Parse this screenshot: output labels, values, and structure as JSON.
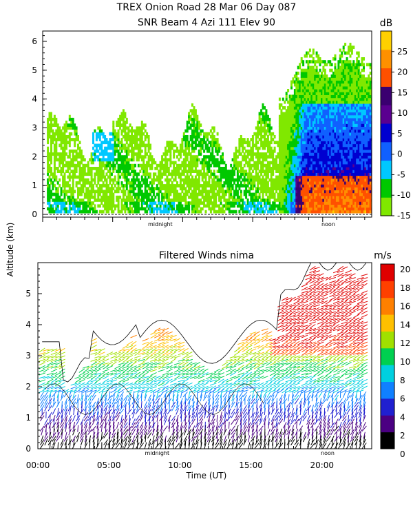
{
  "title": "TREX Onion Road  28 Mar 06 Day 087",
  "subtitle": "SNR Beam 4 Azi 111 Elev 90",
  "ylabel": "Altitude (km)",
  "xlabel": "Time (UT)",
  "chart_data": [
    {
      "type": "heatmap",
      "title": "SNR Beam 4 Azi 111 Elev 90",
      "ylim": [
        0,
        6.4
      ],
      "xlim": [
        0,
        23.5
      ],
      "yticks": [
        "0",
        "1",
        "2",
        "3",
        "4",
        "5",
        "6"
      ],
      "markers": [
        {
          "label": "midnight",
          "x": 8.4
        },
        {
          "label": "noon",
          "x": 20.4
        }
      ],
      "colorbar": {
        "unit": "dB",
        "ticks": [
          "25",
          "20",
          "15",
          "10",
          "5",
          "0",
          "-5",
          "-10",
          "-15"
        ],
        "min": -15,
        "max": 30,
        "colors": [
          "#80e800",
          "#00c800",
          "#00c8ff",
          "#1060ff",
          "#0000d0",
          "#5a0090",
          "#3a0070",
          "#ff5000",
          "#ff9000",
          "#ffd000"
        ]
      },
      "observations": "Weak SNR (-15 to -5 dB) up to ~3.5 km before 17 UT; strong SNR (0 to 25 dB) from ~17 UT with signal up to ~6 km."
    },
    {
      "type": "scatter",
      "title": "Filtered Winds nima",
      "ylim": [
        0,
        6
      ],
      "xlim": [
        0,
        23.5
      ],
      "yticks": [
        "0",
        "1",
        "2",
        "3",
        "4",
        "5"
      ],
      "xticks": [
        "00:00",
        "05:00",
        "10:00",
        "15:00",
        "20:00"
      ],
      "markers": [
        {
          "label": "midnight",
          "x": 8.4
        },
        {
          "label": "noon",
          "x": 20.4
        }
      ],
      "colorbar": {
        "unit": "m/s",
        "ticks": [
          "20",
          "18",
          "16",
          "14",
          "12",
          "10",
          "8",
          "6",
          "4",
          "2",
          "0"
        ],
        "colors": [
          "#000000",
          "#4b0082",
          "#2020d0",
          "#1080ff",
          "#00d0e0",
          "#00d050",
          "#a0e000",
          "#ffc000",
          "#ff8000",
          "#ff4000",
          "#e00000"
        ]
      },
      "observations": "Wind speed increases with altitude: under 6 m/s below ~2 km, 8-14 m/s near 2.5-3 km, above 18 m/s over ~3.5 km after 17 UT."
    }
  ]
}
